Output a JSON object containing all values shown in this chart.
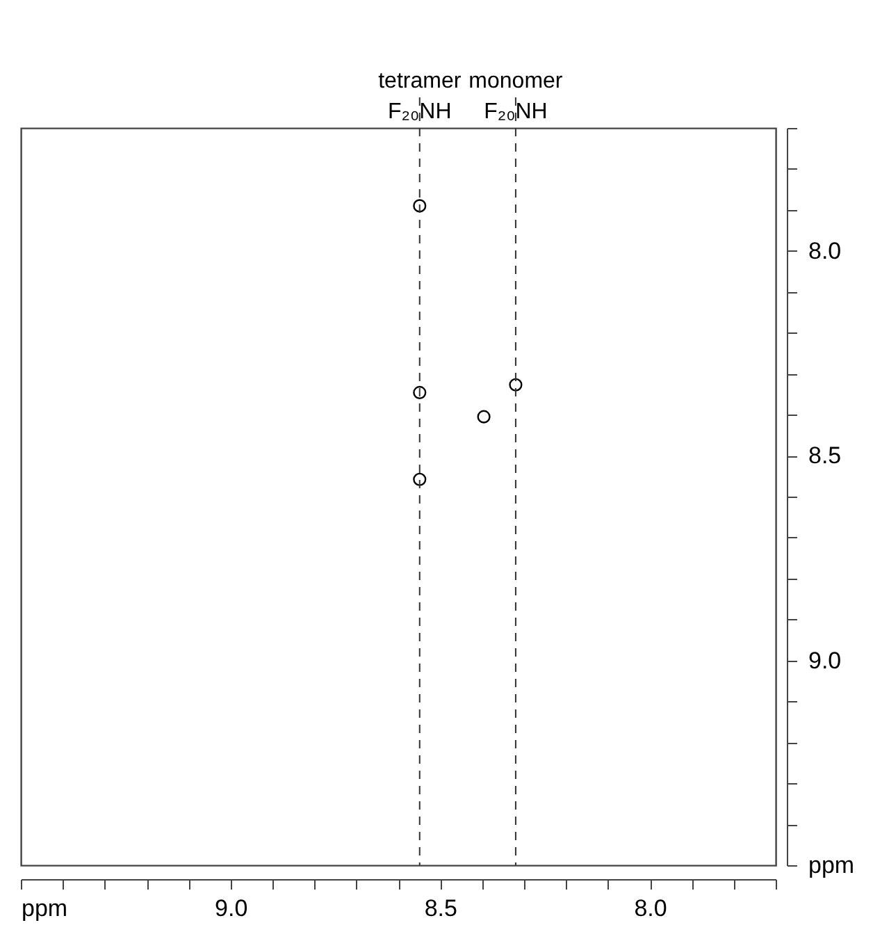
{
  "chart_data": {
    "type": "scatter",
    "x": [
      8.549,
      8.549,
      8.549,
      8.32,
      8.396
    ],
    "values": [
      7.89,
      8.346,
      8.558,
      8.327,
      8.405
    ],
    "color": "#000000",
    "marker": "circle",
    "xlim": [
      9.5,
      7.7
    ],
    "ylim": [
      9.5,
      7.7
    ],
    "xticks": [
      {
        "value": 9.5,
        "label": "ppm"
      },
      {
        "value": 9.4,
        "label": null
      },
      {
        "value": 9.3,
        "label": null
      },
      {
        "value": 9.2,
        "label": null
      },
      {
        "value": 9.1,
        "label": null
      },
      {
        "value": 9.0,
        "label": "9.0"
      },
      {
        "value": 8.9,
        "label": null
      },
      {
        "value": 8.8,
        "label": null
      },
      {
        "value": 8.7,
        "label": null
      },
      {
        "value": 8.6,
        "label": null
      },
      {
        "value": 8.5,
        "label": "8.5"
      },
      {
        "value": 8.4,
        "label": null
      },
      {
        "value": 8.3,
        "label": null
      },
      {
        "value": 8.2,
        "label": null
      },
      {
        "value": 8.1,
        "label": null
      },
      {
        "value": 8.0,
        "label": "8.0"
      },
      {
        "value": 7.9,
        "label": null
      },
      {
        "value": 7.8,
        "label": null
      },
      {
        "value": 7.7,
        "label": null
      }
    ],
    "yticks": [
      {
        "value": 7.7,
        "label": null
      },
      {
        "value": 7.8,
        "label": null
      },
      {
        "value": 7.9,
        "label": null
      },
      {
        "value": 8.0,
        "label": "8.0"
      },
      {
        "value": 8.1,
        "label": null
      },
      {
        "value": 8.2,
        "label": null
      },
      {
        "value": 8.3,
        "label": null
      },
      {
        "value": 8.4,
        "label": null
      },
      {
        "value": 8.5,
        "label": "8.5"
      },
      {
        "value": 8.6,
        "label": null
      },
      {
        "value": 8.7,
        "label": null
      },
      {
        "value": 8.8,
        "label": null
      },
      {
        "value": 8.9,
        "label": null
      },
      {
        "value": 9.0,
        "label": "9.0"
      },
      {
        "value": 9.1,
        "label": null
      },
      {
        "value": 9.2,
        "label": null
      },
      {
        "value": 9.3,
        "label": null
      },
      {
        "value": 9.4,
        "label": null
      },
      {
        "value": 9.5,
        "label": "ppm"
      }
    ],
    "ref_lines": [
      {
        "axis": "x",
        "value": 8.549,
        "label": "tetramer\nF₂₀NH",
        "line_style": "dashed"
      },
      {
        "axis": "x",
        "value": 8.32,
        "label": "monomer\nF₂₀NH",
        "line_style": "dashed"
      }
    ]
  }
}
